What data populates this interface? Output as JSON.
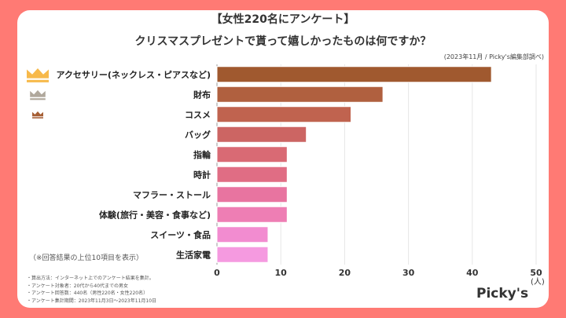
{
  "title": "【女性220名にアンケート】",
  "subtitle": "クリスマスプレゼントで貰って嬉しかったものは何ですか？",
  "source": "(2023年11月 / Picky's編集部調べ)",
  "note": "（※回答結果の上位10項目を表示）",
  "footnotes": [
    "・算出方法：インターネット上でのアンケート結果を集計。",
    "・アンケート対象者：20代から40代までの男女",
    "・アンケート回答数：440名（男性220名・女性220名）",
    "・アンケート集計期間：2023年11月3日〜2023年11月10日"
  ],
  "logo": "Picky's",
  "colors": {
    "background": "#ff7a74",
    "crown_gold": "#f7b94a",
    "crown_silver": "#b0a89c",
    "crown_bronze": "#a65f35"
  },
  "chart_data": {
    "type": "bar",
    "orientation": "horizontal",
    "categories": [
      "アクセサリー(ネックレス・ピアスなど)",
      "財布",
      "コスメ",
      "バッグ",
      "指輪",
      "時計",
      "マフラー・ストール",
      "体験(旅行・美容・食事など)",
      "スイーツ・食品",
      "生活家電"
    ],
    "values": [
      43,
      26,
      21,
      14,
      11,
      11,
      11,
      11,
      8,
      8
    ],
    "bar_colors": [
      "#a0592f",
      "#b0603f",
      "#c0634f",
      "#cc6563",
      "#d96a74",
      "#e06d84",
      "#e874a0",
      "#ee7eb4",
      "#f28cd0",
      "#f59ae0"
    ],
    "xlim": [
      0,
      50
    ],
    "xticks": [
      "0",
      "10",
      "20",
      "30",
      "40",
      "50"
    ],
    "xunit": "(人)",
    "grid": true
  }
}
